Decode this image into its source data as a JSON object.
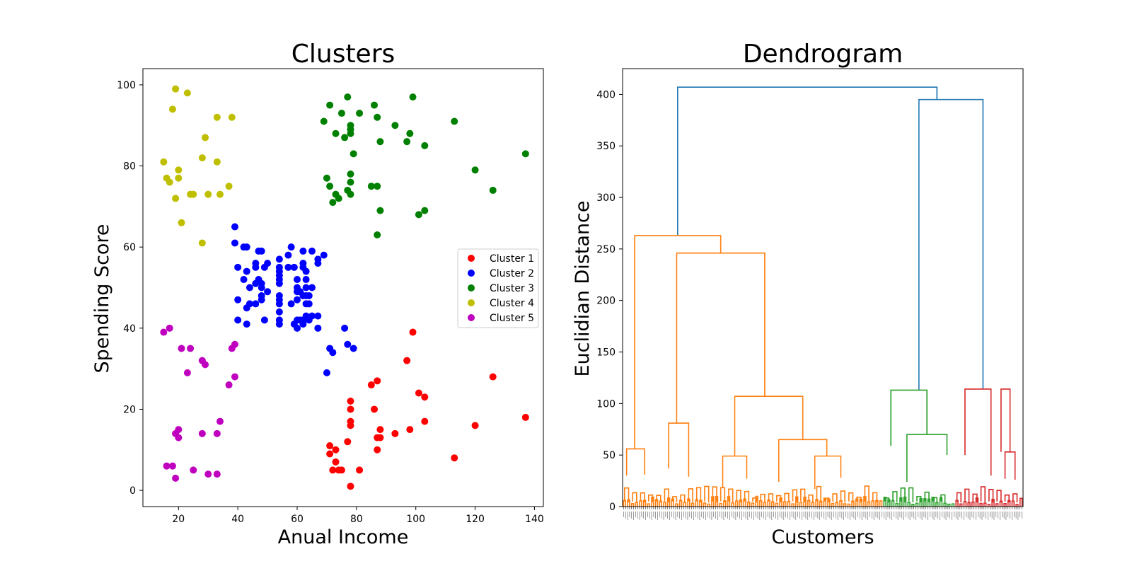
{
  "chart_data": [
    {
      "type": "scatter",
      "title": "Clusters",
      "xlabel": "Anual Income",
      "ylabel": "Spending Score",
      "xlim": [
        8,
        143
      ],
      "ylim": [
        -4,
        104
      ],
      "xticks": [
        20,
        40,
        60,
        80,
        100,
        120,
        140
      ],
      "yticks": [
        0,
        20,
        40,
        60,
        80,
        100
      ],
      "grid": false,
      "legend_position": "center-right",
      "series": [
        {
          "name": "Cluster 1",
          "color": "#ff0000",
          "points": [
            [
              71,
              11
            ],
            [
              71,
              9
            ],
            [
              72,
              5
            ],
            [
              73,
              7
            ],
            [
              73,
              10
            ],
            [
              74,
              5
            ],
            [
              75,
              5
            ],
            [
              77,
              12
            ],
            [
              78,
              1
            ],
            [
              78,
              22
            ],
            [
              78,
              17
            ],
            [
              78,
              16
            ],
            [
              78,
              20
            ],
            [
              81,
              5
            ],
            [
              85,
              26
            ],
            [
              86,
              20
            ],
            [
              87,
              27
            ],
            [
              87,
              13
            ],
            [
              87,
              10
            ],
            [
              88,
              13
            ],
            [
              88,
              15
            ],
            [
              93,
              14
            ],
            [
              97,
              32
            ],
            [
              98,
              15
            ],
            [
              99,
              39
            ],
            [
              101,
              24
            ],
            [
              103,
              17
            ],
            [
              103,
              23
            ],
            [
              113,
              8
            ],
            [
              120,
              16
            ],
            [
              126,
              28
            ],
            [
              137,
              18
            ]
          ]
        },
        {
          "name": "Cluster 2",
          "color": "#0000ff",
          "points": [
            [
              39,
              65
            ],
            [
              39,
              61
            ],
            [
              40,
              55
            ],
            [
              40,
              47
            ],
            [
              40,
              42
            ],
            [
              42,
              52
            ],
            [
              42,
              60
            ],
            [
              43,
              60
            ],
            [
              43,
              54
            ],
            [
              43,
              45
            ],
            [
              43,
              41
            ],
            [
              44,
              50
            ],
            [
              44,
              46
            ],
            [
              46,
              51
            ],
            [
              46,
              56
            ],
            [
              46,
              55
            ],
            [
              46,
              46
            ],
            [
              47,
              52
            ],
            [
              47,
              59
            ],
            [
              48,
              59
            ],
            [
              48,
              51
            ],
            [
              48,
              47
            ],
            [
              48,
              48
            ],
            [
              48,
              50
            ],
            [
              49,
              55
            ],
            [
              49,
              42
            ],
            [
              50,
              49
            ],
            [
              50,
              56
            ],
            [
              54,
              47
            ],
            [
              54,
              54
            ],
            [
              54,
              53
            ],
            [
              54,
              48
            ],
            [
              54,
              52
            ],
            [
              54,
              42
            ],
            [
              54,
              51
            ],
            [
              54,
              55
            ],
            [
              54,
              41
            ],
            [
              54,
              44
            ],
            [
              54,
              57
            ],
            [
              54,
              46
            ],
            [
              57,
              58
            ],
            [
              57,
              55
            ],
            [
              58,
              60
            ],
            [
              58,
              46
            ],
            [
              59,
              55
            ],
            [
              59,
              41
            ],
            [
              60,
              49
            ],
            [
              60,
              40
            ],
            [
              60,
              42
            ],
            [
              60,
              52
            ],
            [
              60,
              47
            ],
            [
              60,
              50
            ],
            [
              61,
              42
            ],
            [
              61,
              49
            ],
            [
              62,
              41
            ],
            [
              62,
              48
            ],
            [
              62,
              59
            ],
            [
              62,
              55
            ],
            [
              62,
              56
            ],
            [
              62,
              42
            ],
            [
              63,
              50
            ],
            [
              63,
              46
            ],
            [
              63,
              43
            ],
            [
              63,
              48
            ],
            [
              63,
              52
            ],
            [
              63,
              54
            ],
            [
              64,
              42
            ],
            [
              64,
              46
            ],
            [
              64,
              48
            ],
            [
              65,
              50
            ],
            [
              65,
              43
            ],
            [
              65,
              59
            ],
            [
              67,
              43
            ],
            [
              67,
              57
            ],
            [
              67,
              56
            ],
            [
              67,
              40
            ],
            [
              69,
              58
            ],
            [
              71,
              35
            ],
            [
              72,
              34
            ],
            [
              70,
              29
            ],
            [
              76,
              40
            ],
            [
              77,
              36
            ],
            [
              79,
              35
            ]
          ]
        },
        {
          "name": "Cluster 3",
          "color": "#008000",
          "points": [
            [
              69,
              91
            ],
            [
              70,
              77
            ],
            [
              71,
              95
            ],
            [
              71,
              75
            ],
            [
              72,
              71
            ],
            [
              73,
              88
            ],
            [
              73,
              73
            ],
            [
              74,
              72
            ],
            [
              75,
              93
            ],
            [
              76,
              87
            ],
            [
              77,
              97
            ],
            [
              77,
              74
            ],
            [
              78,
              90
            ],
            [
              78,
              88
            ],
            [
              78,
              76
            ],
            [
              78,
              89
            ],
            [
              78,
              78
            ],
            [
              78,
              73
            ],
            [
              79,
              83
            ],
            [
              81,
              93
            ],
            [
              85,
              75
            ],
            [
              86,
              95
            ],
            [
              87,
              63
            ],
            [
              87,
              75
            ],
            [
              87,
              92
            ],
            [
              88,
              86
            ],
            [
              88,
              69
            ],
            [
              93,
              90
            ],
            [
              97,
              86
            ],
            [
              98,
              88
            ],
            [
              99,
              97
            ],
            [
              101,
              68
            ],
            [
              103,
              85
            ],
            [
              103,
              69
            ],
            [
              113,
              91
            ],
            [
              120,
              79
            ],
            [
              126,
              74
            ],
            [
              137,
              83
            ]
          ]
        },
        {
          "name": "Cluster 4",
          "color": "#bfbf00",
          "points": [
            [
              15,
              81
            ],
            [
              16,
              77
            ],
            [
              17,
              76
            ],
            [
              18,
              94
            ],
            [
              19,
              72
            ],
            [
              19,
              99
            ],
            [
              20,
              77
            ],
            [
              20,
              79
            ],
            [
              21,
              66
            ],
            [
              23,
              98
            ],
            [
              24,
              73
            ],
            [
              25,
              73
            ],
            [
              28,
              82
            ],
            [
              28,
              61
            ],
            [
              29,
              87
            ],
            [
              30,
              73
            ],
            [
              33,
              92
            ],
            [
              33,
              81
            ],
            [
              34,
              73
            ],
            [
              37,
              75
            ],
            [
              38,
              92
            ]
          ]
        },
        {
          "name": "Cluster 5",
          "color": "#bf00bf",
          "points": [
            [
              15,
              39
            ],
            [
              16,
              6
            ],
            [
              17,
              40
            ],
            [
              18,
              6
            ],
            [
              19,
              3
            ],
            [
              19,
              14
            ],
            [
              20,
              15
            ],
            [
              20,
              13
            ],
            [
              21,
              35
            ],
            [
              23,
              29
            ],
            [
              24,
              35
            ],
            [
              25,
              5
            ],
            [
              28,
              14
            ],
            [
              28,
              32
            ],
            [
              29,
              31
            ],
            [
              30,
              4
            ],
            [
              33,
              4
            ],
            [
              33,
              14
            ],
            [
              34,
              17
            ],
            [
              37,
              26
            ],
            [
              38,
              35
            ],
            [
              39,
              36
            ],
            [
              39,
              28
            ]
          ]
        }
      ]
    },
    {
      "type": "dendrogram",
      "title": "Dendrogram",
      "xlabel": "Customers",
      "ylabel": "Euclidian Distance",
      "ylim": [
        0,
        425
      ],
      "yticks": [
        0,
        50,
        100,
        150,
        200,
        250,
        300,
        350,
        400
      ],
      "xlim": [
        0,
        2000
      ],
      "grid": false,
      "leaf_count": 200,
      "root_color": "#1f77b4",
      "clusters": [
        {
          "color": "#ff7f0e",
          "from": 0,
          "to": 1300
        },
        {
          "color": "#2ca02c",
          "from": 1300,
          "to": 1660
        },
        {
          "color": "#d62728",
          "from": 1660,
          "to": 2000
        }
      ],
      "links": [
        {
          "color": "#1f77b4",
          "x": [
            275,
            275,
            1570,
            1570
          ],
          "y": [
            263,
            407,
            407,
            395
          ]
        },
        {
          "color": "#1f77b4",
          "x": [
            1480,
            1480,
            1800,
            1800
          ],
          "y": [
            113,
            395,
            395,
            114
          ]
        },
        {
          "color": "#ff7f0e",
          "x": [
            60,
            60,
            490,
            490
          ],
          "y": [
            56,
            263,
            263,
            246
          ]
        },
        {
          "color": "#ff7f0e",
          "x": [
            270,
            270,
            710,
            710
          ],
          "y": [
            81,
            246,
            246,
            107
          ]
        },
        {
          "color": "#ff7f0e",
          "x": [
            560,
            560,
            900,
            900
          ],
          "y": [
            49,
            107,
            107,
            65
          ]
        },
        {
          "color": "#ff7f0e",
          "x": [
            780,
            780,
            1020,
            1020
          ],
          "y": [
            24,
            65,
            65,
            49
          ]
        },
        {
          "color": "#ff7f0e",
          "x": [
            20,
            20,
            110,
            110
          ],
          "y": [
            30,
            56,
            56,
            31
          ]
        },
        {
          "color": "#ff7f0e",
          "x": [
            230,
            230,
            330,
            330
          ],
          "y": [
            37,
            81,
            81,
            29
          ]
        },
        {
          "color": "#ff7f0e",
          "x": [
            500,
            500,
            620,
            620
          ],
          "y": [
            18,
            49,
            49,
            27
          ]
        },
        {
          "color": "#ff7f0e",
          "x": [
            960,
            960,
            1090,
            1090
          ],
          "y": [
            17,
            49,
            49,
            28
          ]
        },
        {
          "color": "#2ca02c",
          "x": [
            1340,
            1340,
            1520,
            1520
          ],
          "y": [
            59,
            113,
            113,
            70
          ]
        },
        {
          "color": "#2ca02c",
          "x": [
            1420,
            1420,
            1620,
            1620
          ],
          "y": [
            24,
            70,
            70,
            50
          ]
        },
        {
          "color": "#d62728",
          "x": [
            1710,
            1710,
            1840,
            1840
          ],
          "y": [
            50,
            114,
            114,
            30
          ]
        },
        {
          "color": "#d62728",
          "x": [
            1910,
            1910,
            1960,
            1960
          ],
          "y": [
            27,
            53,
            53,
            26
          ]
        },
        {
          "color": "#d62728",
          "x": [
            1890,
            1890,
            1935,
            1935
          ],
          "y": [
            53,
            114,
            114,
            53
          ]
        }
      ]
    }
  ]
}
